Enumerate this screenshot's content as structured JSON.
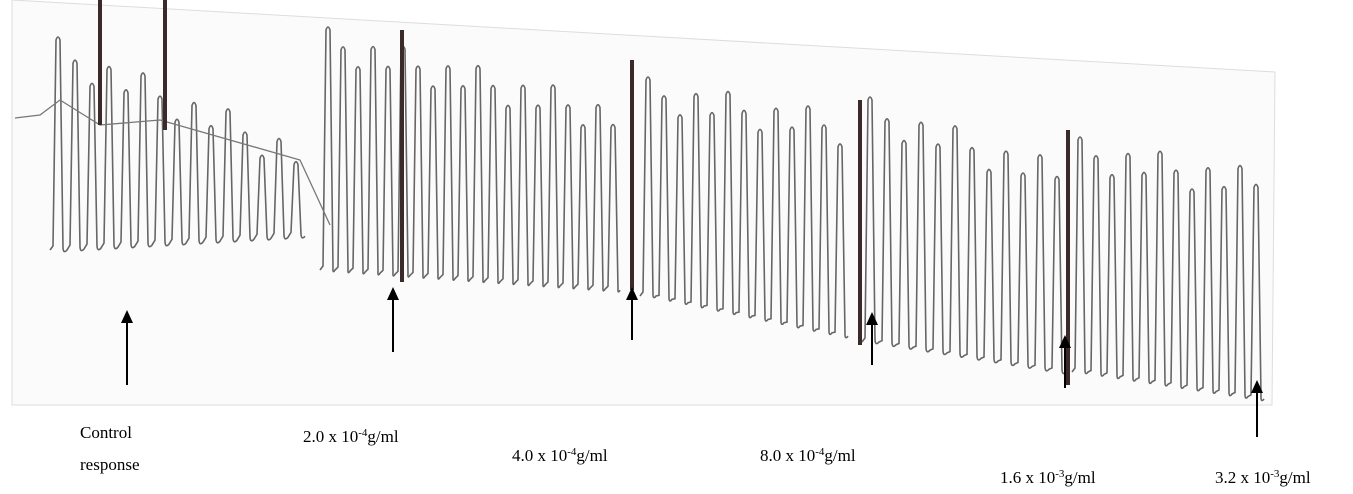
{
  "control_label": {
    "lines": [
      "Control",
      "response"
    ]
  },
  "dose_labels": [
    {
      "base": "2.0 x 10",
      "exponent": "-4",
      "unit": "g/ml"
    },
    {
      "base": "4.0 x 10",
      "exponent": "-4",
      "unit": "g/ml"
    },
    {
      "base": "8.0 x 10",
      "exponent": "-4",
      "unit": "g/ml"
    },
    {
      "base": "1.6 x 10",
      "exponent": "-3",
      "unit": "g/ml"
    },
    {
      "base": "3.2 x 10",
      "exponent": "-3",
      "unit": "g/ml"
    }
  ]
}
